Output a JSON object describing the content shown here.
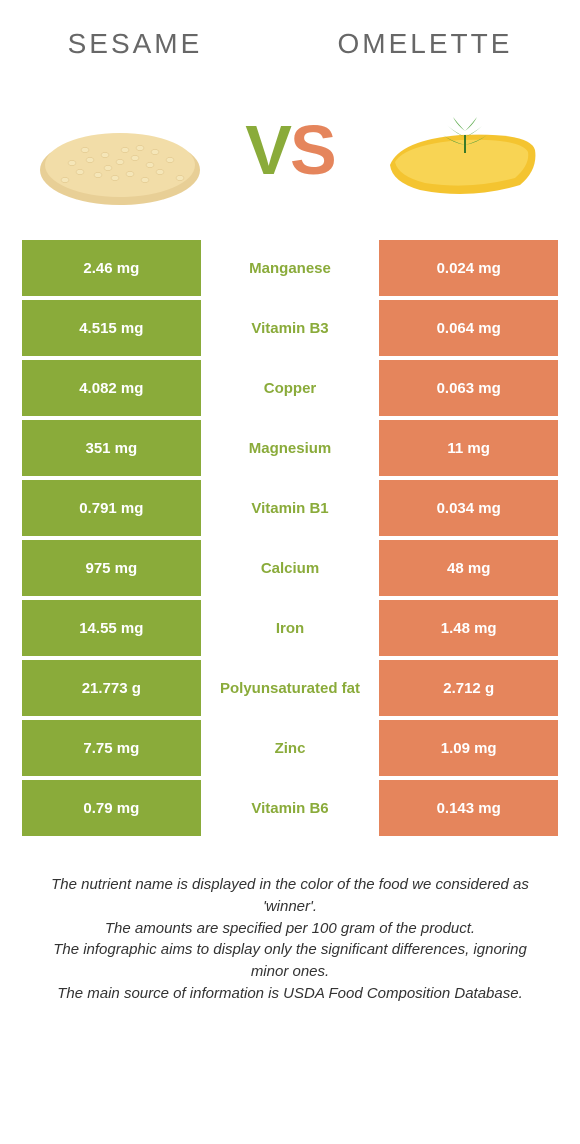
{
  "colors": {
    "left": "#8aab3a",
    "right": "#e5855c",
    "vs_v": "#8aab3a",
    "vs_s": "#e5855c",
    "title": "#676767",
    "text": "#333333",
    "bg": "#ffffff"
  },
  "header": {
    "left_title": "SESAME",
    "right_title": "OMELETTE",
    "vs_v": "V",
    "vs_s": "S"
  },
  "rows": [
    {
      "left": "2.46 mg",
      "mid": "Manganese",
      "right": "0.024 mg",
      "winner": "left"
    },
    {
      "left": "4.515 mg",
      "mid": "Vitamin B3",
      "right": "0.064 mg",
      "winner": "left"
    },
    {
      "left": "4.082 mg",
      "mid": "Copper",
      "right": "0.063 mg",
      "winner": "left"
    },
    {
      "left": "351 mg",
      "mid": "Magnesium",
      "right": "11 mg",
      "winner": "left"
    },
    {
      "left": "0.791 mg",
      "mid": "Vitamin B1",
      "right": "0.034 mg",
      "winner": "left"
    },
    {
      "left": "975 mg",
      "mid": "Calcium",
      "right": "48 mg",
      "winner": "left"
    },
    {
      "left": "14.55 mg",
      "mid": "Iron",
      "right": "1.48 mg",
      "winner": "left"
    },
    {
      "left": "21.773 g",
      "mid": "Polyunsaturated fat",
      "right": "2.712 g",
      "winner": "left"
    },
    {
      "left": "7.75 mg",
      "mid": "Zinc",
      "right": "1.09 mg",
      "winner": "left"
    },
    {
      "left": "0.79 mg",
      "mid": "Vitamin B6",
      "right": "0.143 mg",
      "winner": "left"
    }
  ],
  "footnote": {
    "line1": "The nutrient name is displayed in the color of the food we considered as 'winner'.",
    "line2": "The amounts are specified per 100 gram of the product.",
    "line3": "The infographic aims to display only the significant differences, ignoring minor ones.",
    "line4": "The main source of information is USDA Food Composition Database."
  }
}
